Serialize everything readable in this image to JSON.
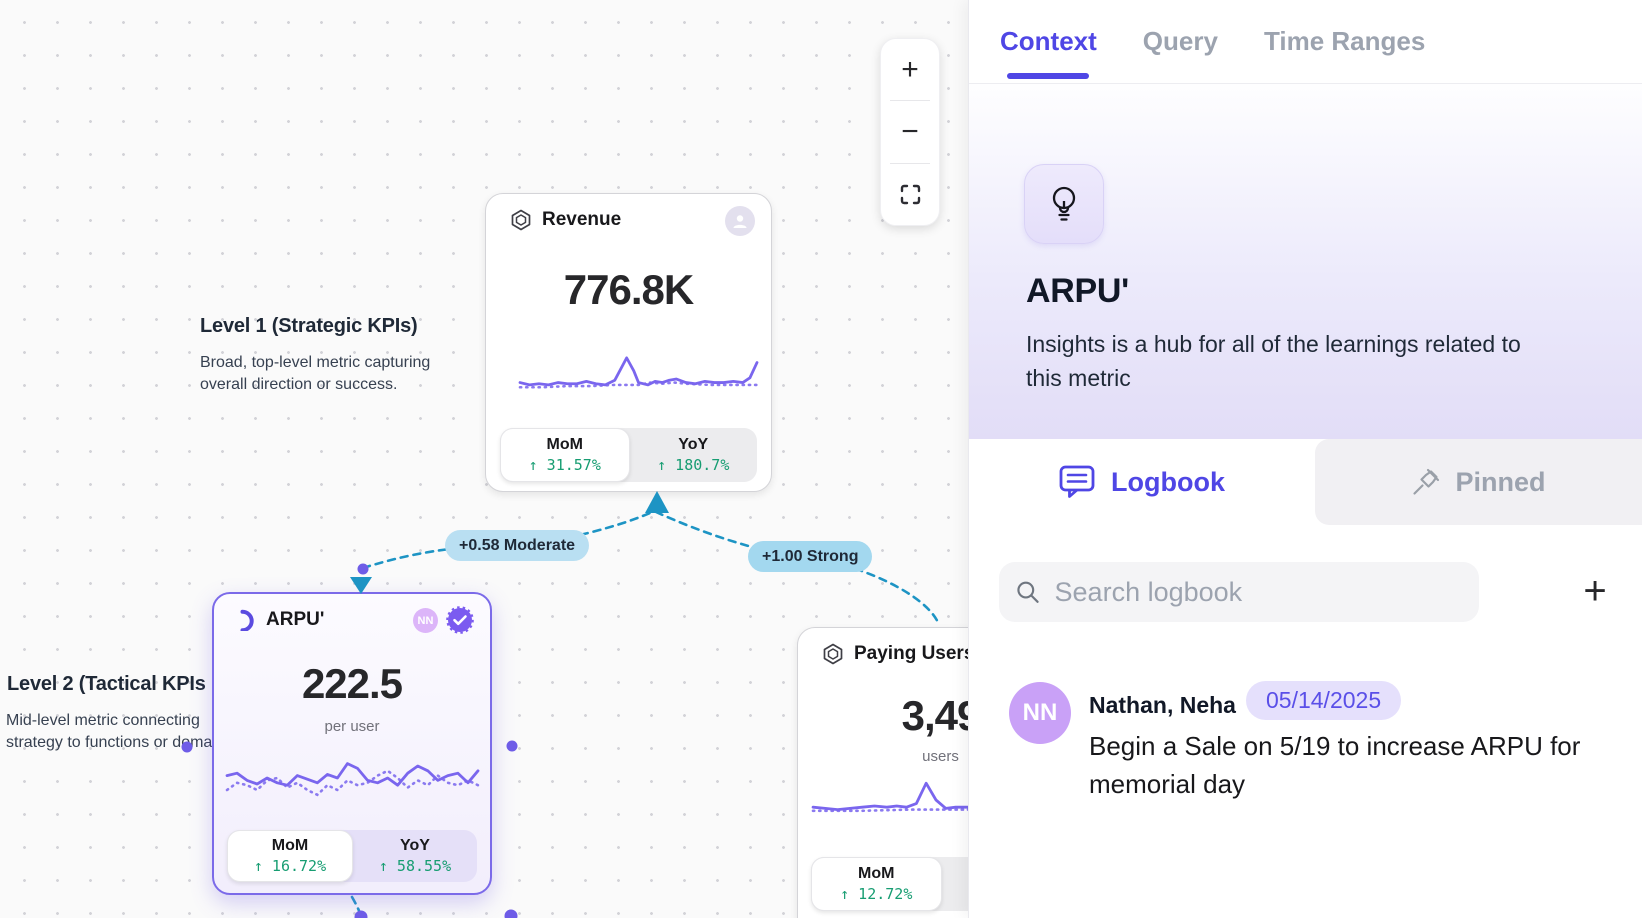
{
  "colors": {
    "accent_indigo": "#4f46e5",
    "chart_purple": "#7a66ee",
    "positive_green": "#179d72",
    "edge_blue": "#1d94c4",
    "pill_moderate_bg": "#b9dff2",
    "pill_strong_bg": "#a3d8ef",
    "selected_card_border": "#7b6ae9",
    "avatar_purple": "#c9a1f7",
    "date_badge_bg": "#e5e0fc",
    "date_badge_text": "#5a4fe8",
    "canvas_bg": "#fafafa",
    "hub_lavender": "#e2ddf7"
  },
  "icons": {
    "zoom-in": "plus glyph",
    "zoom-out": "minus glyph",
    "fit-view": "corner brackets",
    "metric-badge": "double hexagon outline",
    "crescent": "moon arc",
    "verified": "purple seal with check",
    "user-avatar": "person silhouette",
    "lightbulb": "bulb outline",
    "logbook": "comment box",
    "pinned": "pushpin",
    "search": "magnifier",
    "add": "plus glyph"
  },
  "canvas": {
    "zoom_controls": {
      "zoom_in": "+",
      "zoom_out": "−"
    },
    "levels": [
      {
        "title": "Level 1 (Strategic KPIs)",
        "lines": [
          "Broad, top-level metric capturing",
          "overall direction or success."
        ]
      },
      {
        "title": "Level 2 (Tactical KPIs",
        "lines": [
          "Mid-level metric connecting",
          "strategy to functions or doma"
        ]
      }
    ],
    "edges": [
      {
        "label": "+0.58 Moderate"
      },
      {
        "label": "+1.00 Strong"
      }
    ],
    "cards": {
      "revenue": {
        "title": "Revenue",
        "value": "776.8K",
        "stats": {
          "mom_label": "MoM",
          "mom_value": "↑ 31.57%",
          "yoy_label": "YoY",
          "yoy_value": "↑ 180.7%"
        },
        "spark": {
          "solid": [
            [
              0,
              26
            ],
            [
              4,
              28
            ],
            [
              8,
              27
            ],
            [
              12,
              28
            ],
            [
              16,
              26
            ],
            [
              20,
              27
            ],
            [
              24,
              27
            ],
            [
              28,
              25
            ],
            [
              32,
              27
            ],
            [
              36,
              28
            ],
            [
              40,
              24
            ],
            [
              45,
              5
            ],
            [
              48,
              16
            ],
            [
              50,
              26
            ],
            [
              54,
              28
            ],
            [
              57,
              25
            ],
            [
              60,
              26
            ],
            [
              63,
              24
            ],
            [
              66,
              23
            ],
            [
              70,
              26
            ],
            [
              74,
              27
            ],
            [
              78,
              25
            ],
            [
              82,
              26
            ],
            [
              86,
              26
            ],
            [
              90,
              25
            ],
            [
              94,
              26
            ],
            [
              97,
              22
            ],
            [
              100,
              9
            ]
          ],
          "dotted": [
            [
              0,
              30
            ],
            [
              10,
              30
            ],
            [
              20,
              29
            ],
            [
              30,
              29
            ],
            [
              40,
              28
            ],
            [
              50,
              28
            ],
            [
              55,
              26
            ],
            [
              60,
              27
            ],
            [
              65,
              26
            ],
            [
              70,
              27
            ],
            [
              80,
              28
            ],
            [
              90,
              28
            ],
            [
              100,
              28
            ]
          ]
        }
      },
      "arpu": {
        "title": "ARPU'",
        "value": "222.5",
        "unit": "per user",
        "avatar_initials": "NN",
        "stats": {
          "mom_label": "MoM",
          "mom_value": "↑ 16.72%",
          "yoy_label": "YoY",
          "yoy_value": "↑ 58.55%"
        },
        "spark": {
          "solid": [
            [
              0,
              18
            ],
            [
              4,
              16
            ],
            [
              8,
              22
            ],
            [
              12,
              25
            ],
            [
              16,
              20
            ],
            [
              20,
              24
            ],
            [
              24,
              26
            ],
            [
              28,
              18
            ],
            [
              32,
              21
            ],
            [
              36,
              24
            ],
            [
              40,
              17
            ],
            [
              44,
              20
            ],
            [
              48,
              8
            ],
            [
              52,
              12
            ],
            [
              56,
              22
            ],
            [
              60,
              24
            ],
            [
              64,
              20
            ],
            [
              68,
              26
            ],
            [
              72,
              16
            ],
            [
              76,
              10
            ],
            [
              80,
              14
            ],
            [
              84,
              22
            ],
            [
              88,
              18
            ],
            [
              92,
              16
            ],
            [
              96,
              24
            ],
            [
              100,
              14
            ]
          ],
          "dotted": [
            [
              0,
              30
            ],
            [
              4,
              24
            ],
            [
              8,
              26
            ],
            [
              12,
              30
            ],
            [
              16,
              22
            ],
            [
              20,
              20
            ],
            [
              24,
              28
            ],
            [
              28,
              24
            ],
            [
              32,
              30
            ],
            [
              36,
              34
            ],
            [
              40,
              26
            ],
            [
              44,
              30
            ],
            [
              48,
              22
            ],
            [
              52,
              26
            ],
            [
              56,
              24
            ],
            [
              60,
              18
            ],
            [
              64,
              14
            ],
            [
              68,
              20
            ],
            [
              72,
              28
            ],
            [
              76,
              22
            ],
            [
              80,
              26
            ],
            [
              84,
              18
            ],
            [
              88,
              24
            ],
            [
              92,
              26
            ],
            [
              96,
              22
            ],
            [
              100,
              26
            ]
          ]
        }
      },
      "paying": {
        "title": "Paying Users'",
        "value": "3,49",
        "unit": "users",
        "stats": {
          "mom_label": "MoM",
          "mom_value": "↑ 12.72%"
        },
        "spark": {
          "solid": [
            [
              0,
              26
            ],
            [
              5,
              27
            ],
            [
              10,
              28
            ],
            [
              15,
              27
            ],
            [
              20,
              26
            ],
            [
              25,
              25
            ],
            [
              30,
              26
            ],
            [
              34,
              25
            ],
            [
              38,
              26
            ],
            [
              42,
              23
            ],
            [
              46,
              6
            ],
            [
              50,
              20
            ],
            [
              54,
              27
            ],
            [
              58,
              26
            ],
            [
              64,
              26
            ],
            [
              70,
              26
            ],
            [
              80,
              25
            ],
            [
              90,
              26
            ],
            [
              100,
              25
            ]
          ],
          "dotted": [
            [
              0,
              29
            ],
            [
              20,
              29
            ],
            [
              40,
              28
            ],
            [
              50,
              28
            ],
            [
              60,
              28
            ],
            [
              80,
              28
            ],
            [
              100,
              28
            ]
          ]
        }
      }
    }
  },
  "panel": {
    "tabs": [
      {
        "label": "Context"
      },
      {
        "label": "Query"
      },
      {
        "label": "Time Ranges"
      }
    ],
    "hub": {
      "title": "ARPU'",
      "description_lines": [
        "Insights is a hub for all of the learnings related to",
        "this metric"
      ]
    },
    "sections": {
      "logbook": "Logbook",
      "pinned": "Pinned"
    },
    "search": {
      "placeholder": "Search logbook"
    },
    "entries": [
      {
        "initials": "NN",
        "author": "Nathan, Neha",
        "date": "05/14/2025",
        "lines": [
          "Begin a Sale on 5/19 to increase ARPU for",
          "memorial day"
        ]
      }
    ]
  }
}
